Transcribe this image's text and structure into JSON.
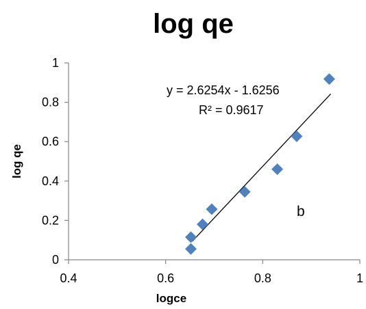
{
  "chart_data": {
    "type": "scatter",
    "title": "log qe",
    "xlabel": "logce",
    "ylabel": "log qe",
    "xlim": [
      0.4,
      1
    ],
    "ylim": [
      0,
      1
    ],
    "x_ticks": [
      "0.4",
      "0.6",
      "0.8",
      "1"
    ],
    "y_ticks": [
      "0",
      "0.2",
      "0.4",
      "0.6",
      "0.8",
      "1"
    ],
    "grid": false,
    "legend": "none",
    "marker": "diamond",
    "marker_color": "#4f81bd",
    "series": [
      {
        "points": [
          {
            "x": 0.652,
            "y": 0.055
          },
          {
            "x": 0.652,
            "y": 0.115
          },
          {
            "x": 0.676,
            "y": 0.18
          },
          {
            "x": 0.695,
            "y": 0.257
          },
          {
            "x": 0.763,
            "y": 0.345
          },
          {
            "x": 0.83,
            "y": 0.46
          },
          {
            "x": 0.87,
            "y": 0.627
          },
          {
            "x": 0.937,
            "y": 0.918
          }
        ]
      }
    ],
    "trendline": {
      "type": "linear",
      "slope": 2.6254,
      "intercept": -1.6256,
      "x_range": [
        0.655,
        0.94
      ],
      "color": "#000000"
    },
    "annotations": {
      "equation": "y = 2.6254x - 1.6256",
      "r_squared": "R² = 0.9617",
      "label": "b"
    }
  }
}
